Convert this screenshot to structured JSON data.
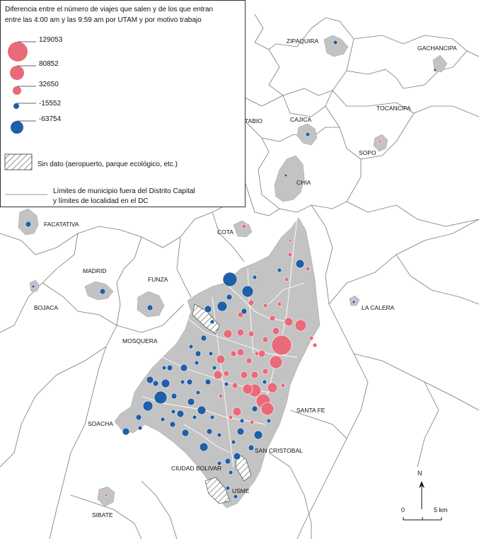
{
  "legend": {
    "title_line1": "Diferencia entre el número de viajes que salen y de los que entran",
    "title_line2": "entre las 4:00 am y las 9:59 am por UTAM y por motivo trabajo",
    "sizes": [
      {
        "value": "129053",
        "sign": "positive"
      },
      {
        "value": "80852",
        "sign": "positive"
      },
      {
        "value": "32650",
        "sign": "positive"
      },
      {
        "value": "-15552",
        "sign": "negative"
      },
      {
        "value": "-63754",
        "sign": "negative"
      }
    ],
    "no_data": "Sin dato (aeropuerto, parque ecológico, etc.)",
    "limits_line1": "Límites de municipio fuera del Distrito Capital",
    "limits_line2": "y límites de localidad en el DC"
  },
  "colors": {
    "positive": "#e96a78",
    "negative": "#1f5fa8",
    "urban": "#c3c3c3",
    "boundary": "#777777"
  },
  "municipalities": [
    "ZIPAQUIRA",
    "GACHANCIPA",
    "TABIO",
    "CAJICA",
    "TOCANCIPA",
    "SOPO",
    "CHIA",
    "COTA",
    "FACATATIVA",
    "MADRID",
    "FUNZA",
    "BOJACA",
    "LA CALERA",
    "MOSQUERA",
    "SANTA FE",
    "SOACHA",
    "SAN CRISTOBAL",
    "CIUDAD BOLIVAR",
    "USME",
    "SIBATE"
  ],
  "compass": {
    "label": "N"
  },
  "scale": {
    "start": "0",
    "end": "5 km"
  }
}
